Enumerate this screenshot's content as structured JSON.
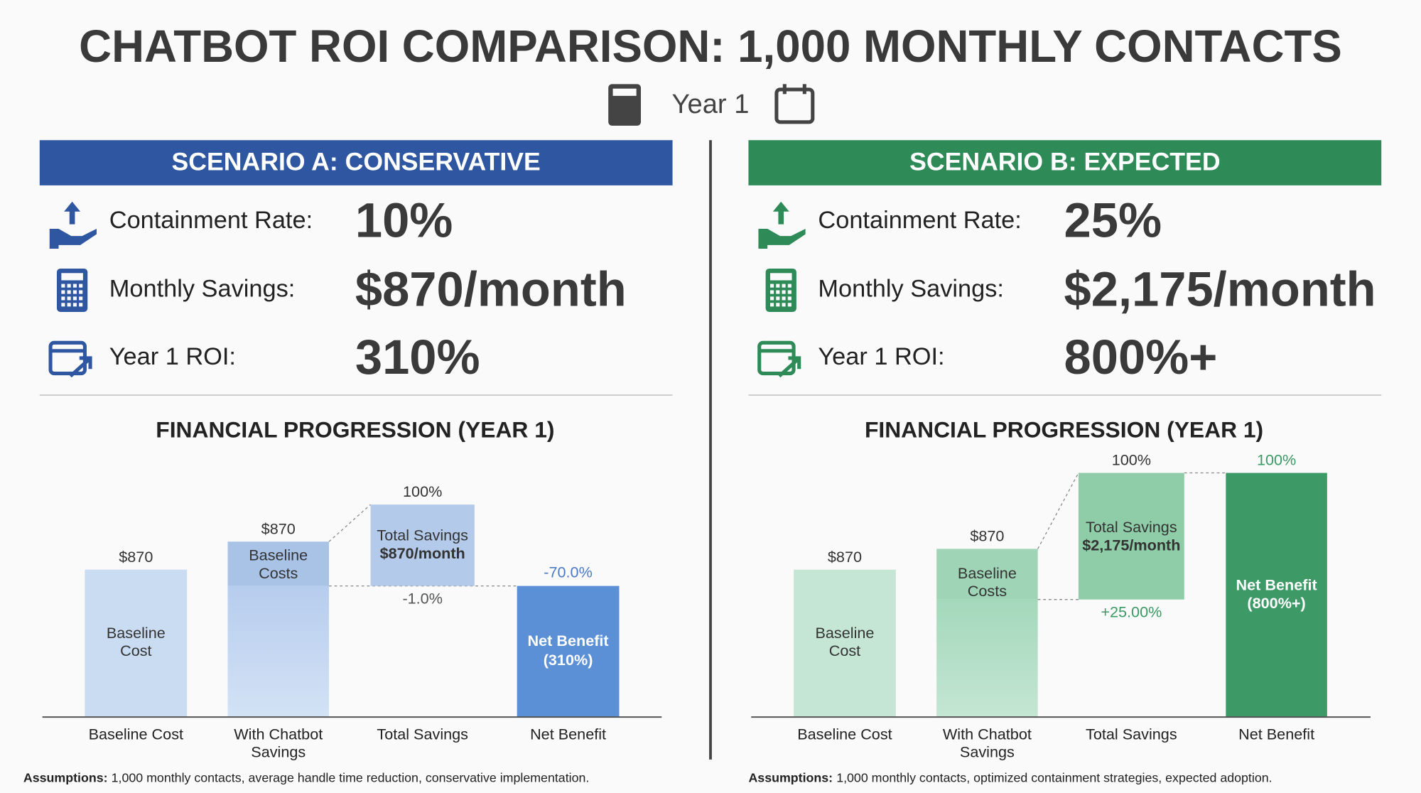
{
  "header": {
    "title": "CHATBOT ROI COMPARISON: 1,000 MONTHLY CONTACTS",
    "subtitle": "Year 1"
  },
  "scenarios": [
    {
      "title": "SCENARIO A: CONSERVATIVE",
      "metrics": [
        {
          "label": "Containment Rate:",
          "value": "10%"
        },
        {
          "label": "Monthly Savings:",
          "value": "$870/month"
        },
        {
          "label": "Year 1 ROI:",
          "value": "310%"
        }
      ],
      "chart_title": "FINANCIAL PROGRESSION (YEAR 1)",
      "bars": [
        {
          "category_lines": [
            "Baseline Cost"
          ],
          "top_label": "$870",
          "inner_lines": [
            "Baseline",
            "Cost"
          ]
        },
        {
          "category_lines": [
            "With Chatbot",
            "Savings"
          ],
          "top_label": "$870",
          "inner_lines": [
            "Baseline",
            "Costs"
          ]
        },
        {
          "category_lines": [
            "Total Savings"
          ],
          "top_label": "100%",
          "inner_lines": [
            "Total Savings",
            "$870/month"
          ],
          "below_label": "-1.0%"
        },
        {
          "category_lines": [
            "Net Benefit"
          ],
          "top_label": "-70.0%",
          "inner_lines": [
            "Net Benefit",
            "(310%)"
          ]
        }
      ],
      "assumptions_label": "Assumptions:",
      "assumptions": "1,000 monthly contacts, average handle time reduction, conservative implementation."
    },
    {
      "title": "SCENARIO B: EXPECTED",
      "metrics": [
        {
          "label": "Containment Rate:",
          "value": "25%"
        },
        {
          "label": "Monthly Savings:",
          "value": "$2,175/month"
        },
        {
          "label": "Year 1 ROI:",
          "value": "800%+"
        }
      ],
      "chart_title": "FINANCIAL PROGRESSION (YEAR 1)",
      "bars": [
        {
          "category_lines": [
            "Baseline Cost"
          ],
          "top_label": "$870",
          "inner_lines": [
            "Baseline",
            "Cost"
          ]
        },
        {
          "category_lines": [
            "With Chatbot",
            "Savings"
          ],
          "top_label": "$870",
          "inner_lines": [
            "Baseline",
            "Costs"
          ]
        },
        {
          "category_lines": [
            "Total Savings"
          ],
          "top_label": "100%",
          "inner_lines": [
            "Total Savings",
            "$2,175/month"
          ],
          "below_label": "+25.00%"
        },
        {
          "category_lines": [
            "Net Benefit"
          ],
          "top_label": "100%",
          "inner_lines": [
            "Net Benefit",
            "(800%+)"
          ]
        }
      ],
      "assumptions_label": "Assumptions:",
      "assumptions": "1,000 monthly contacts, optimized containment strategies, expected adoption."
    }
  ]
}
